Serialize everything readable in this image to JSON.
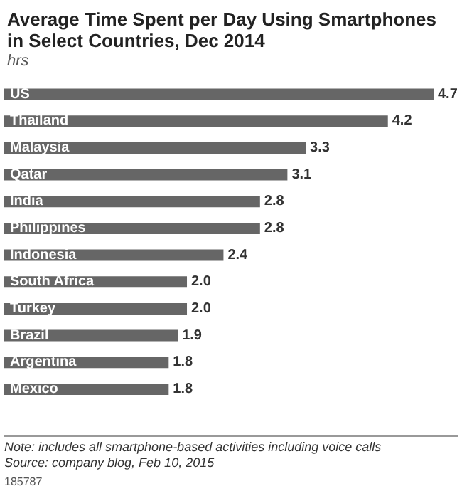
{
  "chart_data": {
    "type": "bar",
    "orientation": "horizontal",
    "title": "Average Time Spent per Day Using Smartphones in Select Countries, Dec 2014",
    "subtitle": "hrs",
    "categories": [
      "US",
      "Thailand",
      "Malaysia",
      "Qatar",
      "India",
      "Philippines",
      "Indonesia",
      "South Africa",
      "Turkey",
      "Brazil",
      "Argentina",
      "Mexico"
    ],
    "values": [
      4.7,
      4.2,
      3.3,
      3.1,
      2.8,
      2.8,
      2.4,
      2.0,
      2.0,
      1.9,
      1.8,
      1.8
    ],
    "value_labels": [
      "4.7",
      "4.2",
      "3.3",
      "3.1",
      "2.8",
      "2.8",
      "2.4",
      "2.0",
      "2.0",
      "1.9",
      "1.8",
      "1.8"
    ],
    "color": "#666666",
    "grid": false,
    "legend": false,
    "annotations": [
      "Note: includes all smartphone-based activities including voice calls",
      "Source: company blog, Feb 10, 2015",
      "185787"
    ]
  }
}
